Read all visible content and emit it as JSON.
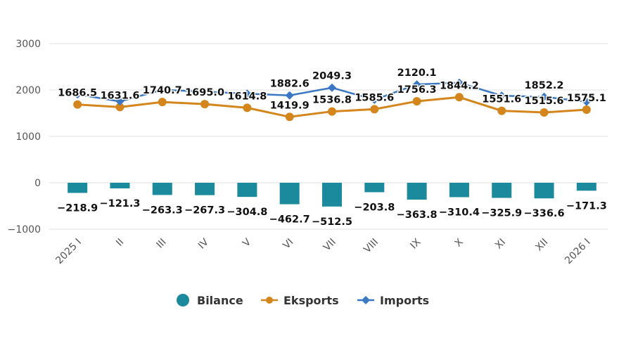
{
  "chart_data": {
    "type": "bar+line",
    "categories": [
      "2025 I",
      "II",
      "III",
      "IV",
      "V",
      "VI",
      "VII",
      "VIII",
      "IX",
      "X",
      "XI",
      "XII",
      "2026 I"
    ],
    "ylim": [
      -1000,
      3000
    ],
    "yticks": [
      3000,
      2000,
      1000,
      0,
      -1000
    ],
    "ytick_labels": [
      "3000",
      "2000",
      "1000",
      "0",
      "−1000"
    ],
    "grid": true,
    "legend_position": "bottom",
    "series": [
      {
        "name": "Bilance",
        "type": "bar",
        "color": "#1b8a9c",
        "values": [
          -218.9,
          -121.3,
          -263.3,
          -267.3,
          -304.8,
          -462.7,
          -512.5,
          -203.8,
          -363.8,
          -310.4,
          -325.9,
          -336.6,
          -171.3
        ],
        "labels": [
          "−218.9",
          "−121.3",
          "−263.3",
          "−267.3",
          "−304.8",
          "−462.7",
          "−512.5",
          "−203.8",
          "−363.8",
          "−310.4",
          "−325.9",
          "−336.6",
          "−171.3"
        ]
      },
      {
        "name": "Eksports",
        "type": "line",
        "color": "#d4861c",
        "values": [
          1686.5,
          1631.6,
          1740.7,
          1695.0,
          1614.8,
          1419.9,
          1536.8,
          1585.6,
          1756.3,
          1844.2,
          1551.6,
          1515.6,
          1575.1
        ],
        "labels": [
          "1686.5",
          "1631.6",
          "1740.7",
          "1695.0",
          "1614.8",
          "1419.9",
          "1536.8",
          "1585.6",
          "1756.3",
          "1844.2",
          "1551.6",
          "1515.6",
          "1575.1"
        ]
      },
      {
        "name": "Imports",
        "type": "line",
        "color": "#3b78c3",
        "values": [
          1905.4,
          1752.9,
          2004.0,
          1962.3,
          1919.6,
          1882.6,
          2049.3,
          1789.4,
          2120.1,
          2154.6,
          1877.5,
          1852.2,
          1746.4
        ],
        "labels": [
          null,
          null,
          null,
          null,
          null,
          "1882.6",
          "2049.3",
          null,
          "2120.1",
          null,
          null,
          "1852.2",
          null
        ]
      }
    ]
  }
}
